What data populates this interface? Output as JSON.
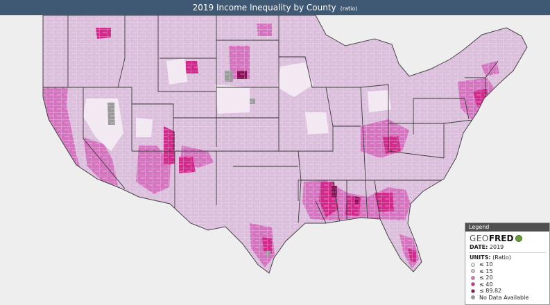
{
  "header": {
    "title": "2019 Income Inequality by County",
    "units": "(ratio)"
  },
  "legend": {
    "panel_label": "Legend",
    "logo_geo": "GEO",
    "logo_fred": "FRED",
    "date_label": "DATE:",
    "date_value": "2019",
    "units_label": "UNITS:",
    "units_value": "(Ratio)",
    "items": [
      {
        "label": "≤ 10",
        "color": "#f3e9f3"
      },
      {
        "label": "≤ 15",
        "color": "#dcbfdc"
      },
      {
        "label": "≤ 20",
        "color": "#d673c0"
      },
      {
        "label": "≤ 40",
        "color": "#d4298c"
      },
      {
        "label": "≤ 89.82",
        "color": "#8e0d54"
      },
      {
        "label": "No Data Available",
        "color": "#9a9a9a"
      }
    ]
  }
}
